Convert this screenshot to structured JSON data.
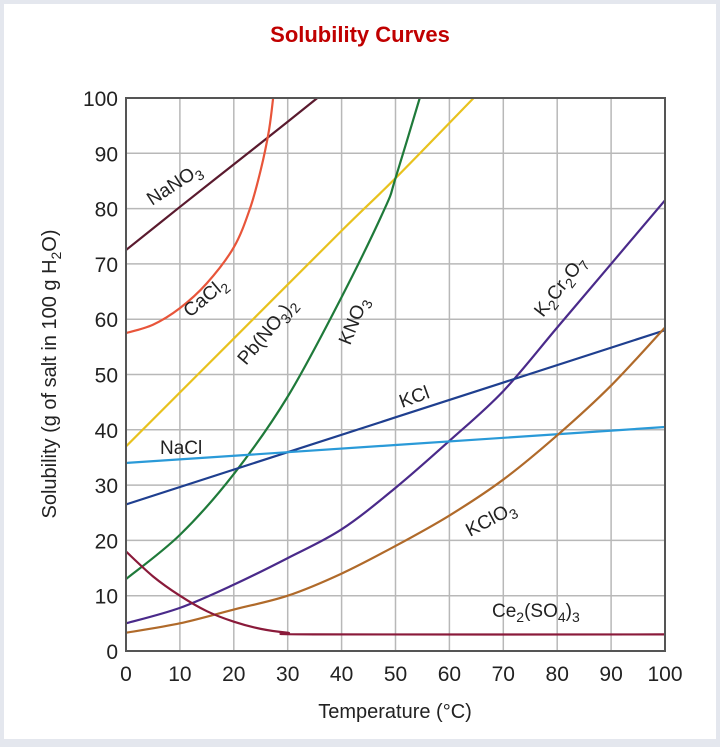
{
  "chart_data": {
    "type": "line",
    "title": "Solubility Curves",
    "xlabel": "Temperature (°C)",
    "ylabel": "Solubility (g of salt in 100 g H₂O)",
    "xlim": [
      0,
      100
    ],
    "ylim": [
      0,
      100
    ],
    "grid": true,
    "x_ticks": [
      "0",
      "10",
      "20",
      "30",
      "40",
      "50",
      "60",
      "70",
      "80",
      "90",
      "100"
    ],
    "y_ticks": [
      "0",
      "10",
      "20",
      "30",
      "40",
      "50",
      "60",
      "70",
      "80",
      "90",
      "100"
    ],
    "series": [
      {
        "name": "NaNO3",
        "label_main": "NaNO",
        "label_sub": "3",
        "label_tail": "",
        "color": "#5a1a2e",
        "points": [
          [
            0,
            72.5
          ],
          [
            10,
            80.3
          ],
          [
            20,
            88
          ],
          [
            30,
            95.7
          ],
          [
            35.5,
            100
          ]
        ]
      },
      {
        "name": "CaCl2",
        "label_main": "CaCl",
        "label_sub": "2",
        "label_tail": "",
        "color": "#e8553a",
        "points": [
          [
            0,
            57.5
          ],
          [
            5,
            59
          ],
          [
            10,
            62
          ],
          [
            15,
            66.5
          ],
          [
            20,
            73
          ],
          [
            23,
            80
          ],
          [
            25,
            87
          ],
          [
            26.5,
            94
          ],
          [
            27.3,
            100
          ]
        ]
      },
      {
        "name": "Pb(NO3)2",
        "label_main": "Pb(NO",
        "label_sub": "3",
        "label_tail": ")2",
        "color": "#e8c21e",
        "points": [
          [
            0,
            37
          ],
          [
            20,
            56.5
          ],
          [
            40,
            76
          ],
          [
            50,
            85.5
          ],
          [
            64.5,
            100
          ]
        ]
      },
      {
        "name": "KNO3",
        "label_main": "KNO",
        "label_sub": "3",
        "label_tail": "",
        "color": "#1f7a3a",
        "points": [
          [
            0,
            13
          ],
          [
            10,
            21
          ],
          [
            20,
            32
          ],
          [
            30,
            46
          ],
          [
            40,
            64
          ],
          [
            48,
            80
          ],
          [
            50,
            85.5
          ],
          [
            54.5,
            100
          ]
        ]
      },
      {
        "name": "K2Cr2O7",
        "label_main": "K2Cr2O7",
        "label_sub": "",
        "label_tail": "",
        "color": "#4a2a8a",
        "points": [
          [
            0,
            5
          ],
          [
            10,
            7.8
          ],
          [
            20,
            12
          ],
          [
            30,
            16.8
          ],
          [
            40,
            22
          ],
          [
            50,
            29.5
          ],
          [
            60,
            38
          ],
          [
            70,
            47
          ],
          [
            80,
            58.5
          ],
          [
            90,
            70
          ],
          [
            100,
            81.5
          ]
        ]
      },
      {
        "name": "KCl",
        "label_main": "KCl",
        "label_sub": "",
        "label_tail": "",
        "color": "#1f3f8f",
        "points": [
          [
            0,
            26.5
          ],
          [
            100,
            58
          ]
        ]
      },
      {
        "name": "NaCl",
        "label_main": "NaCl",
        "label_sub": "",
        "label_tail": "",
        "color": "#2a9ad8",
        "points": [
          [
            0,
            34
          ],
          [
            100,
            40.5
          ]
        ]
      },
      {
        "name": "KClO3",
        "label_main": "KClO",
        "label_sub": "3",
        "label_tail": "",
        "color": "#b06a2a",
        "points": [
          [
            0,
            3.3
          ],
          [
            10,
            5
          ],
          [
            20,
            7.5
          ],
          [
            30,
            10
          ],
          [
            40,
            14
          ],
          [
            50,
            19
          ],
          [
            60,
            24.5
          ],
          [
            70,
            31
          ],
          [
            80,
            39
          ],
          [
            90,
            48
          ],
          [
            100,
            58.5
          ]
        ]
      },
      {
        "name": "Ce2(SO4)3",
        "label_main": "Ce2(SO4)3",
        "label_sub": "",
        "label_tail": "",
        "color": "#8a1a3a",
        "points": [
          [
            0,
            18
          ],
          [
            5,
            13.5
          ],
          [
            10,
            10
          ],
          [
            15,
            7.2
          ],
          [
            20,
            5.3
          ],
          [
            25,
            4
          ],
          [
            30,
            3.3
          ],
          [
            35,
            3
          ],
          [
            100,
            3
          ]
        ]
      }
    ]
  }
}
